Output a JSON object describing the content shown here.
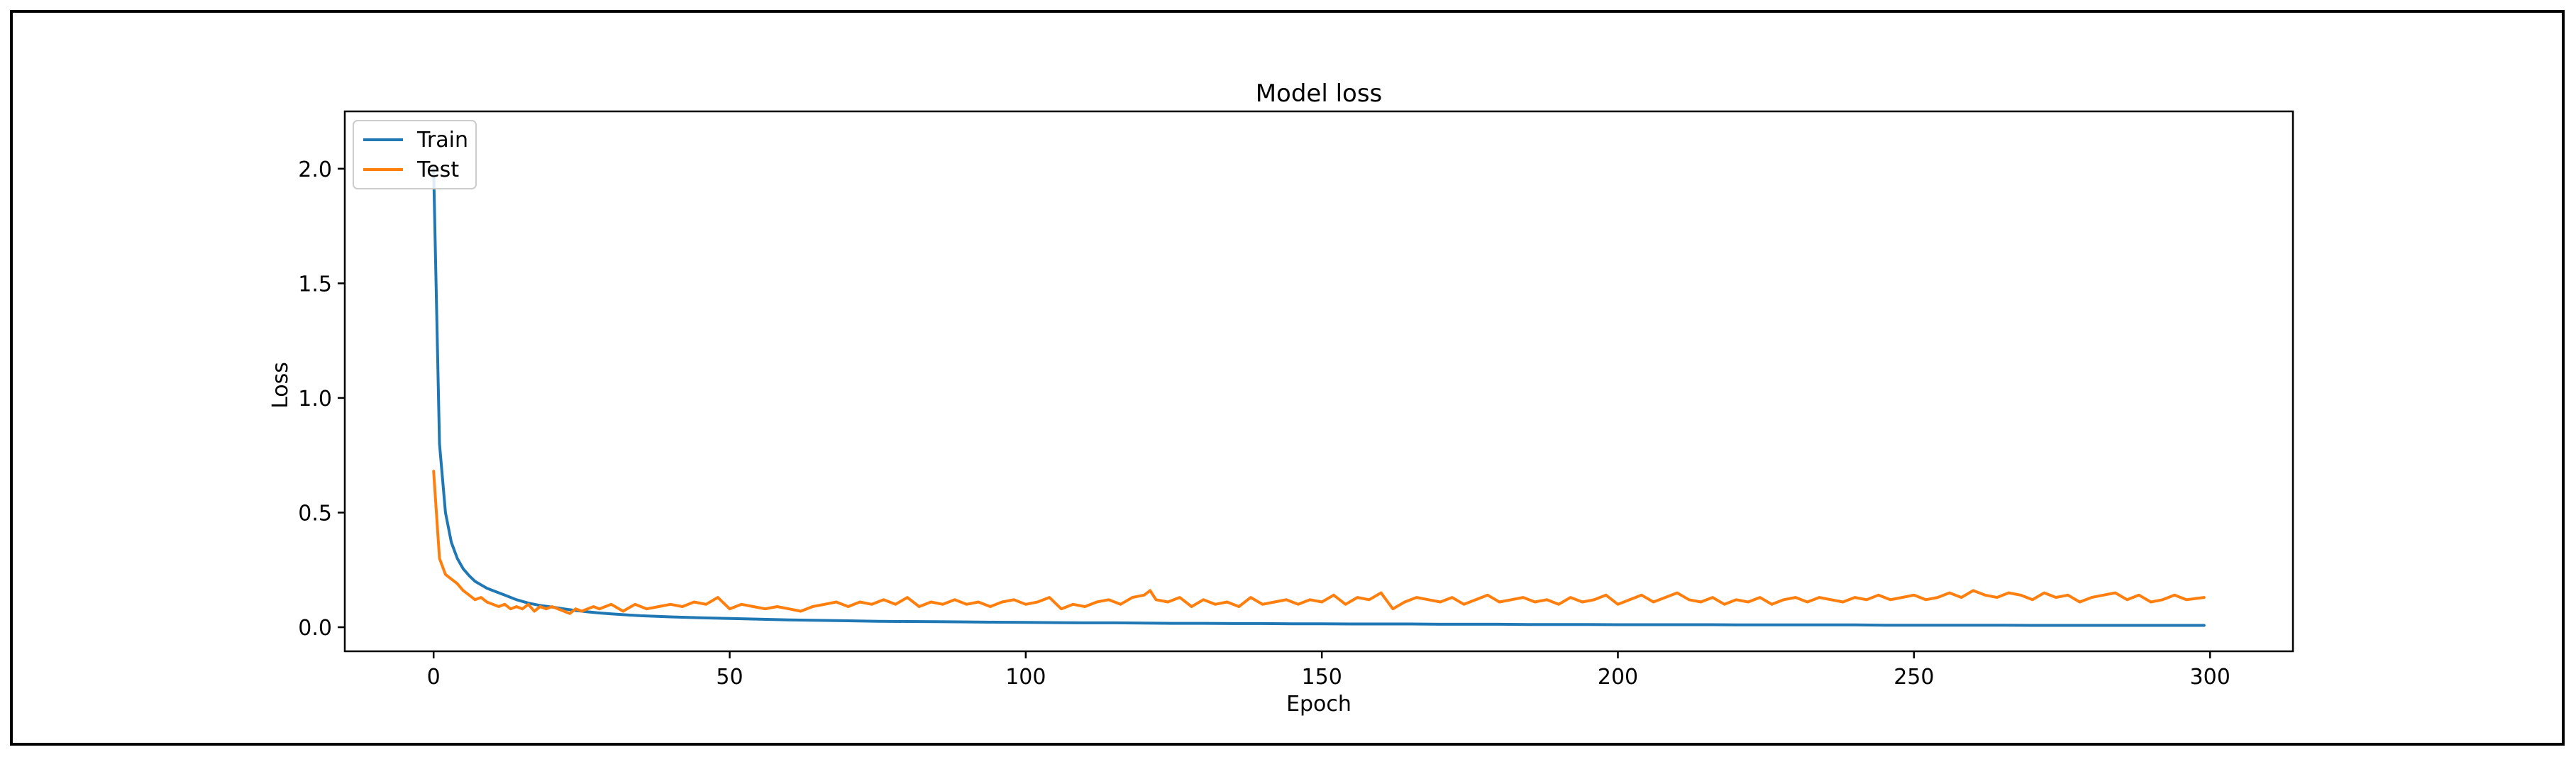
{
  "chart_data": {
    "type": "line",
    "title": "Model loss",
    "xlabel": "Epoch",
    "ylabel": "Loss",
    "xlim": [
      -15,
      314
    ],
    "ylim": [
      -0.105,
      2.25
    ],
    "xticks": [
      0,
      50,
      100,
      150,
      200,
      250,
      300
    ],
    "xtick_labels": [
      "0",
      "50",
      "100",
      "150",
      "200",
      "250",
      "300"
    ],
    "yticks": [
      0.0,
      0.5,
      1.0,
      1.5,
      2.0
    ],
    "ytick_labels": [
      "0.0",
      "0.5",
      "1.0",
      "1.5",
      "2.0"
    ],
    "grid": false,
    "legend_position": "top-left",
    "series": [
      {
        "name": "Train",
        "color": "#1f77b4",
        "x": [
          0,
          1,
          2,
          3,
          4,
          5,
          6,
          7,
          8,
          9,
          10,
          12,
          14,
          16,
          18,
          20,
          22,
          24,
          26,
          28,
          30,
          35,
          40,
          45,
          50,
          55,
          60,
          65,
          70,
          75,
          80,
          85,
          90,
          95,
          100,
          105,
          110,
          115,
          120,
          125,
          130,
          135,
          140,
          145,
          150,
          155,
          160,
          165,
          170,
          175,
          180,
          185,
          190,
          195,
          200,
          205,
          210,
          215,
          220,
          225,
          230,
          235,
          240,
          245,
          250,
          255,
          260,
          265,
          270,
          275,
          280,
          285,
          290,
          295,
          299
        ],
        "y": [
          2.0,
          0.8,
          0.5,
          0.37,
          0.3,
          0.255,
          0.225,
          0.2,
          0.185,
          0.17,
          0.16,
          0.14,
          0.12,
          0.105,
          0.095,
          0.088,
          0.08,
          0.073,
          0.067,
          0.062,
          0.058,
          0.05,
          0.045,
          0.041,
          0.038,
          0.035,
          0.032,
          0.03,
          0.028,
          0.026,
          0.025,
          0.024,
          0.023,
          0.022,
          0.021,
          0.02,
          0.019,
          0.019,
          0.018,
          0.017,
          0.017,
          0.016,
          0.016,
          0.015,
          0.015,
          0.014,
          0.014,
          0.014,
          0.013,
          0.013,
          0.013,
          0.012,
          0.012,
          0.012,
          0.011,
          0.011,
          0.011,
          0.011,
          0.01,
          0.01,
          0.01,
          0.01,
          0.01,
          0.009,
          0.009,
          0.009,
          0.009,
          0.009,
          0.008,
          0.008,
          0.008,
          0.008,
          0.008,
          0.008,
          0.008
        ]
      },
      {
        "name": "Test",
        "color": "#ff7f0e",
        "x": [
          0,
          1,
          2,
          3,
          4,
          5,
          6,
          7,
          8,
          9,
          10,
          11,
          12,
          13,
          14,
          15,
          16,
          17,
          18,
          19,
          20,
          21,
          22,
          23,
          24,
          25,
          26,
          27,
          28,
          29,
          30,
          32,
          34,
          36,
          38,
          40,
          42,
          44,
          46,
          48,
          50,
          52,
          54,
          56,
          58,
          60,
          62,
          64,
          66,
          68,
          70,
          72,
          74,
          76,
          78,
          80,
          82,
          84,
          86,
          88,
          90,
          92,
          94,
          96,
          98,
          100,
          102,
          104,
          106,
          108,
          110,
          112,
          114,
          116,
          118,
          120,
          121,
          122,
          124,
          126,
          128,
          130,
          132,
          134,
          136,
          138,
          140,
          142,
          144,
          146,
          148,
          150,
          152,
          154,
          156,
          158,
          160,
          162,
          164,
          166,
          168,
          170,
          172,
          174,
          176,
          178,
          180,
          182,
          184,
          186,
          188,
          190,
          192,
          194,
          196,
          198,
          200,
          202,
          204,
          206,
          208,
          210,
          212,
          214,
          216,
          218,
          220,
          222,
          224,
          226,
          228,
          230,
          232,
          234,
          236,
          238,
          240,
          242,
          244,
          246,
          248,
          250,
          252,
          254,
          256,
          258,
          260,
          262,
          264,
          266,
          268,
          270,
          272,
          274,
          276,
          278,
          280,
          282,
          284,
          286,
          288,
          290,
          292,
          294,
          296,
          299
        ],
        "y": [
          0.68,
          0.3,
          0.23,
          0.21,
          0.19,
          0.16,
          0.14,
          0.12,
          0.13,
          0.11,
          0.1,
          0.09,
          0.1,
          0.08,
          0.09,
          0.08,
          0.1,
          0.07,
          0.09,
          0.08,
          0.09,
          0.08,
          0.07,
          0.06,
          0.08,
          0.07,
          0.08,
          0.09,
          0.08,
          0.09,
          0.1,
          0.07,
          0.1,
          0.08,
          0.09,
          0.1,
          0.09,
          0.11,
          0.1,
          0.13,
          0.08,
          0.1,
          0.09,
          0.08,
          0.09,
          0.08,
          0.07,
          0.09,
          0.1,
          0.11,
          0.09,
          0.11,
          0.1,
          0.12,
          0.1,
          0.13,
          0.09,
          0.11,
          0.1,
          0.12,
          0.1,
          0.11,
          0.09,
          0.11,
          0.12,
          0.1,
          0.11,
          0.13,
          0.08,
          0.1,
          0.09,
          0.11,
          0.12,
          0.1,
          0.13,
          0.14,
          0.16,
          0.12,
          0.11,
          0.13,
          0.09,
          0.12,
          0.1,
          0.11,
          0.09,
          0.13,
          0.1,
          0.11,
          0.12,
          0.1,
          0.12,
          0.11,
          0.14,
          0.1,
          0.13,
          0.12,
          0.15,
          0.08,
          0.11,
          0.13,
          0.12,
          0.11,
          0.13,
          0.1,
          0.12,
          0.14,
          0.11,
          0.12,
          0.13,
          0.11,
          0.12,
          0.1,
          0.13,
          0.11,
          0.12,
          0.14,
          0.1,
          0.12,
          0.14,
          0.11,
          0.13,
          0.15,
          0.12,
          0.11,
          0.13,
          0.1,
          0.12,
          0.11,
          0.13,
          0.1,
          0.12,
          0.13,
          0.11,
          0.13,
          0.12,
          0.11,
          0.13,
          0.12,
          0.14,
          0.12,
          0.13,
          0.14,
          0.12,
          0.13,
          0.15,
          0.13,
          0.16,
          0.14,
          0.13,
          0.15,
          0.14,
          0.12,
          0.15,
          0.13,
          0.14,
          0.11,
          0.13,
          0.14,
          0.15,
          0.12,
          0.14,
          0.11,
          0.12,
          0.14,
          0.12,
          0.13
        ]
      }
    ]
  }
}
